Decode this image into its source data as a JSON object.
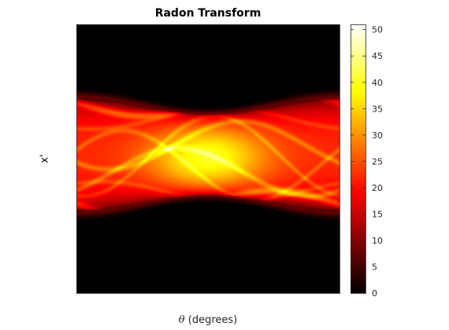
{
  "chart_data": {
    "type": "heatmap",
    "title": "Radon Transform",
    "xlabel_symbol": "θ",
    "xlabel_text": " (degrees)",
    "ylabel": "x'",
    "colormap": "hot",
    "clim": [
      0,
      51
    ],
    "colorbar_ticks": [
      0,
      5,
      10,
      15,
      20,
      25,
      30,
      35,
      40,
      45,
      50
    ],
    "x_ticks": [],
    "y_ticks": []
  }
}
